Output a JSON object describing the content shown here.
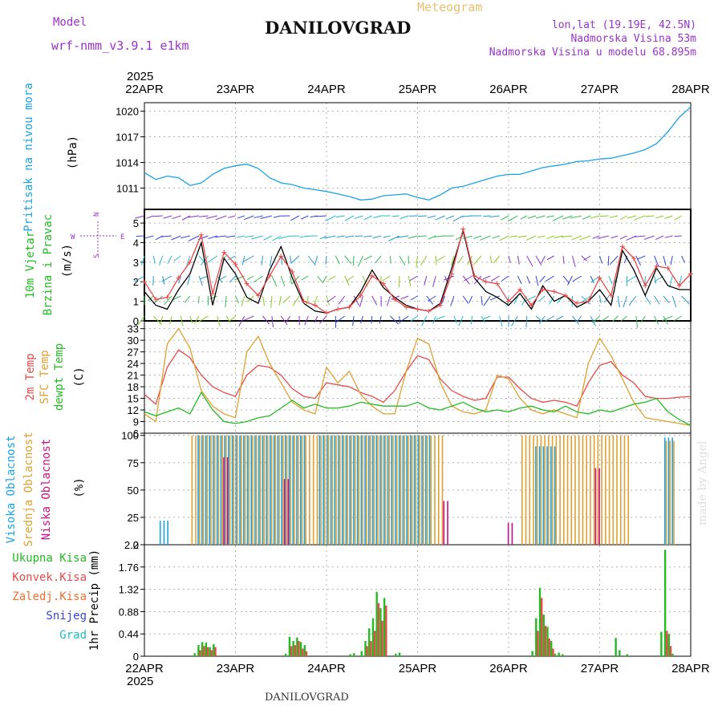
{
  "header": {
    "model_label": "Model",
    "model_name": "wrf-nmm_v3.9.1 e1km",
    "station_title": "DANILOVGRAD",
    "product": "Meteogram",
    "coords": "lon,lat (19.19E, 42.5N)",
    "elevation": "Nadmorska Visina 53m",
    "model_elevation": "Nadmorska Visina u modelu 68.895m"
  },
  "footer": {
    "station": "DANILOVGRAD",
    "watermark": "made by Angel"
  },
  "colors": {
    "pressure": "#1aa3e6",
    "wind_label": "#22bb22",
    "temp2m": "#e84a4a",
    "sfc_temp": "#e0a030",
    "dewpt": "#22bb22",
    "high_cloud": "#1aa3e6",
    "mid_cloud": "#e0a030",
    "low_cloud": "#cc1188",
    "total_precip": "#22bb22",
    "conv_precip": "#e84a4a",
    "frozen": "#f07030",
    "snow": "#3344dd",
    "hail": "#22bbbb",
    "violet": "#9933cc",
    "header_violet": "#9933cc"
  },
  "chart_data": {
    "type": "line",
    "time_axis": {
      "year": "2025",
      "ticks": [
        "22APR",
        "23APR",
        "24APR",
        "25APR",
        "26APR",
        "27APR",
        "28APR"
      ],
      "range_hours": [
        0,
        144
      ]
    },
    "panels": [
      {
        "id": "pressure",
        "type": "line",
        "ylabel": "Pritisak na nivou mora",
        "unit": "(hPa)",
        "yticks": [
          1011,
          1014,
          1017,
          1020
        ],
        "ylim": [
          1008.5,
          1021
        ],
        "series": [
          {
            "key": "pressure",
            "x": [
              0,
              3,
              6,
              9,
              12,
              15,
              18,
              21,
              24,
              27,
              30,
              33,
              36,
              39,
              42,
              45,
              48,
              51,
              54,
              57,
              60,
              63,
              66,
              69,
              72,
              75,
              78,
              81,
              84,
              87,
              90,
              93,
              96,
              99,
              102,
              105,
              108,
              111,
              114,
              117,
              120,
              123,
              126,
              129,
              132,
              135,
              138,
              141,
              144
            ],
            "y": [
              1012.8,
              1012,
              1012.4,
              1012.2,
              1011.3,
              1011.6,
              1012.6,
              1013.3,
              1013.6,
              1013.8,
              1013.3,
              1012.2,
              1011.6,
              1011.4,
              1011,
              1010.8,
              1010.6,
              1010.3,
              1010,
              1009.6,
              1009.7,
              1010.1,
              1010.2,
              1010.3,
              1009.9,
              1009.6,
              1010.2,
              1011,
              1011.2,
              1011.6,
              1012,
              1012.4,
              1012.6,
              1012.6,
              1013,
              1013.4,
              1013.6,
              1013.8,
              1014.1,
              1014.2,
              1014.4,
              1014.5,
              1014.8,
              1015.1,
              1015.5,
              1016.2,
              1017.6,
              1019.3,
              1020.5
            ]
          }
        ]
      },
      {
        "id": "wind",
        "type": "line",
        "ylabel": "10m Vjetar Brzina i Pravac",
        "unit": "(m/s)",
        "compass": [
          "W",
          "E",
          "N",
          "S"
        ],
        "yticks": [
          0,
          1,
          2,
          3,
          4,
          5
        ],
        "ylim": [
          0,
          5.7
        ],
        "series": [
          {
            "key": "wind_speed",
            "x": [
              0,
              3,
              6,
              9,
              12,
              15,
              18,
              21,
              24,
              27,
              30,
              33,
              36,
              39,
              42,
              45,
              48,
              51,
              54,
              57,
              60,
              63,
              66,
              69,
              72,
              75,
              78,
              81,
              84,
              87,
              90,
              93,
              96,
              99,
              102,
              105,
              108,
              111,
              114,
              117,
              120,
              123,
              126,
              129,
              132,
              135,
              138,
              141,
              144
            ],
            "y": [
              1.5,
              0.8,
              0.6,
              1.6,
              2.4,
              4.0,
              0.8,
              3.2,
              2.4,
              1.2,
              0.9,
              2.6,
              3.8,
              2.2,
              0.9,
              0.5,
              0.4,
              0.6,
              0.7,
              1.5,
              2.6,
              1.7,
              1.2,
              0.8,
              0.6,
              0.5,
              0.9,
              2.7,
              4.6,
              2.2,
              1.5,
              1.2,
              0.8,
              1.4,
              0.6,
              1.8,
              1.0,
              1.3,
              0.7,
              1.0,
              1.6,
              0.8,
              3.6,
              2.6,
              1.3,
              2.7,
              1.8,
              1.6,
              1.6
            ]
          },
          {
            "key": "wind_gust",
            "x": [
              0,
              3,
              6,
              9,
              12,
              15,
              18,
              21,
              24,
              27,
              30,
              33,
              36,
              39,
              42,
              45,
              48,
              51,
              54,
              57,
              60,
              63,
              66,
              69,
              72,
              75,
              78,
              81,
              84,
              87,
              90,
              93,
              96,
              99,
              102,
              105,
              108,
              111,
              114,
              117,
              120,
              123,
              126,
              129,
              132,
              135,
              138,
              141,
              144
            ],
            "y": [
              2.0,
              1.1,
              1.2,
              2.2,
              3.0,
              4.4,
              1.4,
              3.5,
              2.9,
              1.9,
              1.3,
              2.3,
              3.3,
              2.5,
              1.0,
              0.8,
              0.4,
              0.6,
              0.7,
              1.3,
              2.3,
              1.9,
              1.1,
              0.7,
              0.6,
              0.5,
              0.8,
              2.4,
              4.7,
              2.3,
              2.0,
              1.9,
              1.0,
              1.6,
              0.8,
              1.6,
              1.5,
              1.3,
              0.9,
              1.0,
              2.2,
              1.3,
              3.8,
              3.2,
              1.8,
              2.8,
              2.7,
              1.8,
              2.4
            ]
          }
        ]
      },
      {
        "id": "temperature",
        "type": "line",
        "ylabel_lines": [
          "2m Temp",
          "SFC Temp",
          "dewpt Temp"
        ],
        "unit": "(C)",
        "yticks": [
          6,
          9,
          12,
          15,
          18,
          21,
          24,
          27,
          30,
          33
        ],
        "ylim": [
          6,
          35
        ],
        "series": [
          {
            "key": "temp2m",
            "x": [
              0,
              3,
              6,
              9,
              12,
              15,
              18,
              21,
              24,
              27,
              30,
              33,
              36,
              39,
              42,
              45,
              48,
              51,
              54,
              57,
              60,
              63,
              66,
              69,
              72,
              75,
              78,
              81,
              84,
              87,
              90,
              93,
              96,
              99,
              102,
              105,
              108,
              111,
              114,
              117,
              120,
              123,
              126,
              129,
              132,
              135,
              138,
              141,
              144
            ],
            "y": [
              16,
              13.5,
              23,
              27.5,
              25.5,
              21,
              18,
              16.5,
              15.5,
              21,
              23.5,
              23,
              21,
              17.5,
              15.5,
              15,
              19,
              18.5,
              18,
              16.5,
              15.5,
              14,
              17,
              22,
              26,
              25,
              20,
              17,
              15.5,
              14.5,
              15,
              20.5,
              20.5,
              17.5,
              15,
              14,
              14.5,
              14,
              13,
              19,
              23.5,
              24.5,
              21,
              19,
              15.5,
              15,
              15,
              15.3,
              15.5
            ]
          },
          {
            "key": "sfc_temp",
            "x": [
              0,
              3,
              6,
              9,
              12,
              15,
              18,
              21,
              24,
              27,
              30,
              33,
              36,
              39,
              42,
              45,
              48,
              51,
              54,
              57,
              60,
              63,
              66,
              69,
              72,
              75,
              78,
              81,
              84,
              87,
              90,
              93,
              96,
              99,
              102,
              105,
              108,
              111,
              114,
              117,
              120,
              123,
              126,
              129,
              132,
              135,
              138,
              141,
              144
            ],
            "y": [
              11,
              9,
              29,
              33,
              28,
              17,
              13,
              11,
              10,
              27,
              31,
              24,
              19,
              14,
              12,
              11,
              23,
              19,
              22,
              16,
              13,
              11,
              11,
              22,
              30.5,
              29,
              19,
              13,
              11.5,
              11,
              12,
              21,
              20,
              15,
              12,
              11,
              12,
              11,
              10,
              24,
              30.5,
              26,
              20,
              14,
              10,
              9.5,
              9,
              8.5,
              8
            ]
          },
          {
            "key": "dewpt",
            "x": [
              0,
              3,
              6,
              9,
              12,
              15,
              18,
              21,
              24,
              27,
              30,
              33,
              36,
              39,
              42,
              45,
              48,
              51,
              54,
              57,
              60,
              63,
              66,
              69,
              72,
              75,
              78,
              81,
              84,
              87,
              90,
              93,
              96,
              99,
              102,
              105,
              108,
              111,
              114,
              117,
              120,
              123,
              126,
              129,
              132,
              135,
              138,
              141,
              144
            ],
            "y": [
              11.5,
              10.5,
              11.5,
              12.5,
              11,
              16.5,
              12,
              9,
              8.5,
              9,
              10,
              10.5,
              12.5,
              14.5,
              12.5,
              13.5,
              12.5,
              12.5,
              13,
              14,
              13.5,
              13,
              13,
              13,
              14,
              12.5,
              12,
              13,
              14,
              12.5,
              11.5,
              12,
              11.5,
              12.5,
              13,
              12,
              11.5,
              13,
              11.5,
              11,
              12,
              11.5,
              12.5,
              13.5,
              14,
              15,
              11.5,
              9.5,
              8
            ]
          }
        ]
      },
      {
        "id": "clouds",
        "type": "bar",
        "ylabel_lines": [
          "Visoka Oblacnost",
          "Srednja Oblacnost",
          "Niska Oblacnost"
        ],
        "unit": "(%)",
        "yticks": [
          0,
          25,
          50,
          75,
          100
        ],
        "ylim": [
          0,
          102
        ],
        "note": "hourly cloud fraction (high, mid, low) in percent"
      },
      {
        "id": "precip",
        "type": "bar",
        "ylabel_lines": [
          "Ukupna Kisa",
          "Konvek.Kisa",
          "Zaledj.Kisa",
          "Snijeg",
          "Grad"
        ],
        "unit": "1hr Precip (mm)",
        "yticks": [
          0,
          0.44,
          0.88,
          1.32,
          1.76,
          2.2
        ],
        "ylim": [
          0,
          2.2
        ],
        "series": [
          {
            "key": "total_precip",
            "x": [
              13,
              14,
              15,
              16,
              17,
              18,
              37,
              38,
              39,
              40,
              41,
              42,
              54,
              55,
              57,
              58,
              59,
              60,
              61,
              62,
              63,
              66,
              67,
              102,
              103,
              104,
              105,
              106,
              107,
              108,
              109,
              110,
              124,
              125,
              127,
              136,
              137,
              138,
              139
            ],
            "y": [
              0.06,
              0.22,
              0.28,
              0.27,
              0.18,
              0.24,
              0.05,
              0.38,
              0.3,
              0.37,
              0.28,
              0.22,
              0.04,
              0.06,
              0.1,
              0.3,
              0.55,
              0.75,
              1.27,
              0.95,
              1.15,
              0.05,
              0.07,
              0.1,
              0.75,
              1.35,
              0.82,
              0.58,
              0.3,
              0.05,
              0.07,
              0.04,
              0.36,
              0.12,
              0.04,
              0.48,
              2.1,
              0.44,
              0.05
            ]
          },
          {
            "key": "conv_precip",
            "x": [
              14,
              15,
              16,
              17,
              18,
              38,
              39,
              40,
              41,
              42,
              58,
              59,
              60,
              61,
              62,
              63,
              103,
              104,
              105,
              106,
              107,
              137,
              138
            ],
            "y": [
              0.12,
              0.2,
              0.18,
              0.12,
              0.18,
              0.2,
              0.22,
              0.3,
              0.15,
              0.1,
              0.2,
              0.3,
              0.5,
              1.05,
              0.7,
              1.0,
              0.5,
              1.15,
              0.6,
              0.35,
              0.15,
              0.5,
              0.2
            ]
          }
        ]
      }
    ]
  }
}
